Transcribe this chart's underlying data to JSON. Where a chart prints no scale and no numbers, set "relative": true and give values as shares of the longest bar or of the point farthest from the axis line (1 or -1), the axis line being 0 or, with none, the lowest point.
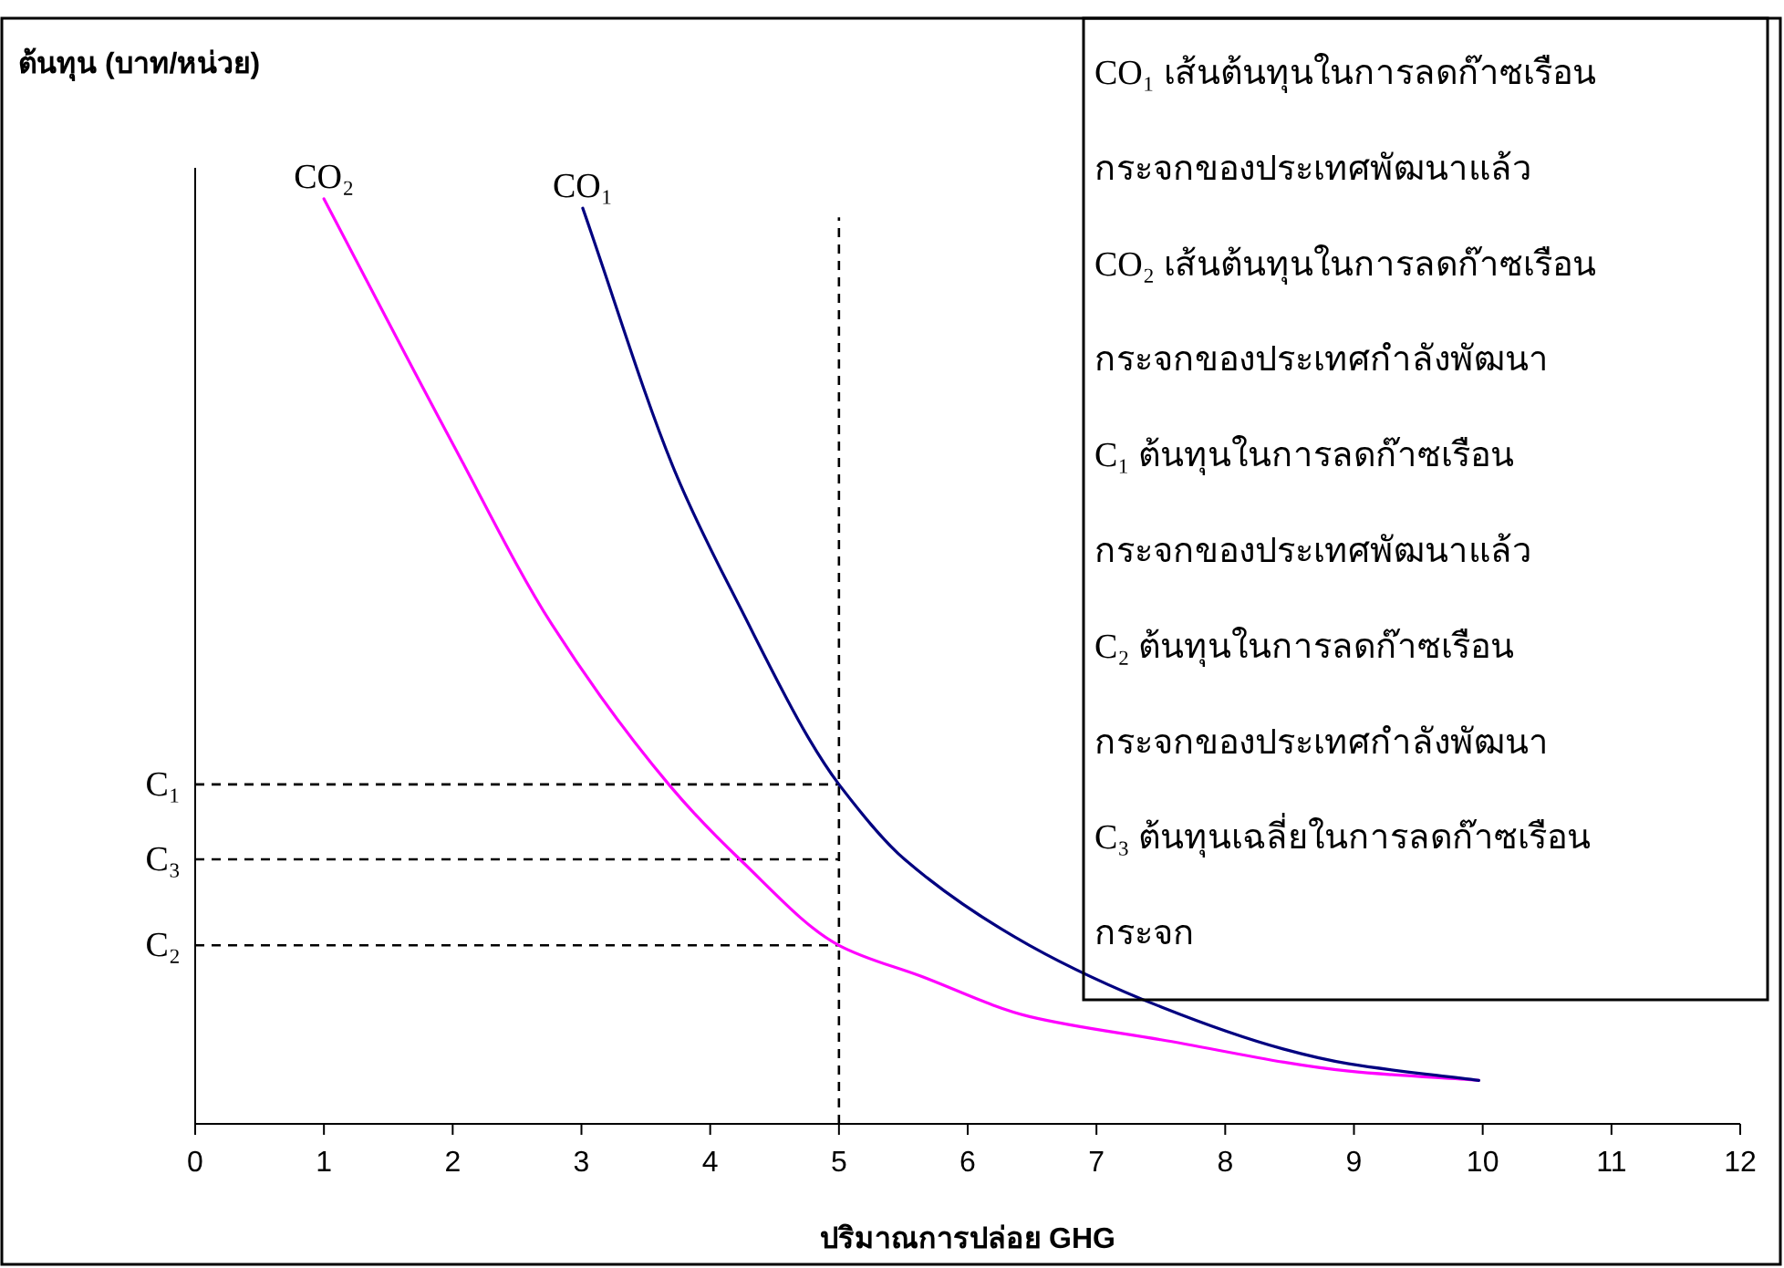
{
  "chart_data": {
    "type": "line",
    "relative": true,
    "xlabel": "ปริมาณการปล่อย GHG",
    "ylabel": "ต้นทุน (บาท/หน่วย)",
    "xlim": [
      0,
      12
    ],
    "xticks": [
      0,
      1,
      2,
      3,
      4,
      5,
      6,
      7,
      8,
      9,
      10,
      11,
      12
    ],
    "series": [
      {
        "name": "CO₂",
        "color": "#ff00ff",
        "x": [
          1,
          1.99,
          2.77,
          3.69,
          4.23,
          5,
          5.63,
          6.48,
          7.5,
          8.96,
          9.97
        ],
        "values": [
          1.0,
          0.738,
          0.54,
          0.365,
          0.286,
          0.193,
          0.16,
          0.116,
          0.091,
          0.057,
          0.047
        ]
      },
      {
        "name": "CO₁",
        "color": "#000080",
        "x": [
          3.01,
          3.73,
          4.27,
          4.76,
          5,
          5.51,
          6.48,
          7.51,
          8.45,
          8.96,
          9.97
        ],
        "values": [
          0.99,
          0.704,
          0.548,
          0.418,
          0.367,
          0.286,
          0.193,
          0.126,
          0.081,
          0.065,
          0.047
        ]
      }
    ],
    "ref_lines": [
      {
        "axis": "y",
        "value": 0.367,
        "label": "C₁",
        "line_style": "dashed",
        "color": "#000000"
      },
      {
        "axis": "y",
        "value": 0.286,
        "label": "C₃",
        "line_style": "dashed",
        "color": "#000000"
      },
      {
        "axis": "y",
        "value": 0.193,
        "label": "C₂",
        "line_style": "dashed",
        "color": "#000000"
      },
      {
        "axis": "x",
        "value": 5,
        "label": null,
        "line_style": "dashed",
        "color": "#000000"
      }
    ],
    "annotations": [
      "CO₁ เส้นต้นทุนในการลดก๊าซเรือน",
      "กระจกของประเทศพัฒนาแล้ว",
      "CO₂ เส้นต้นทุนในการลดก๊าซเรือน",
      "กระจกของประเทศกำลังพัฒนา",
      "C₁  ต้นทุนในการลดก๊าซเรือน",
      "กระจกของประเทศพัฒนาแล้ว",
      "C₂ ต้นทุนในการลดก๊าซเรือน",
      "กระจกของประเทศกำลังพัฒนา",
      "C₃ ต้นทุนเฉลี่ยในการลดก๊าซเรือน",
      "กระจก"
    ]
  }
}
